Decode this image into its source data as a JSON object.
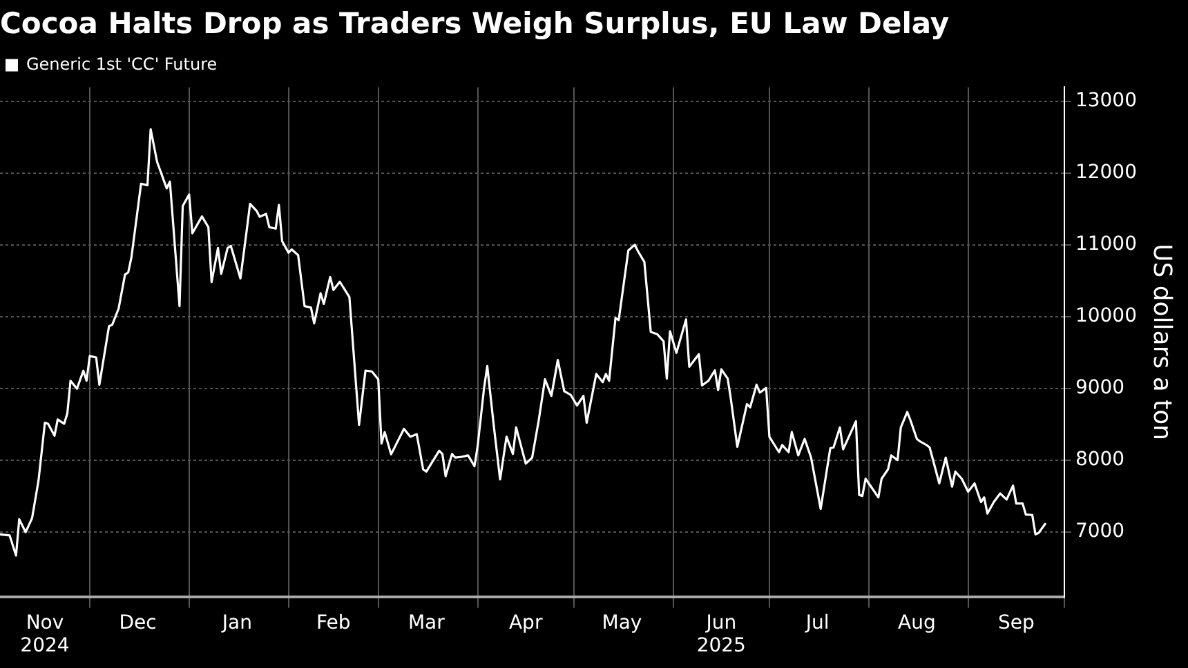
{
  "chart_data": {
    "type": "line",
    "title": "Cocoa Halts Drop as Traders Weigh Surplus, EU Law Delay",
    "ylabel": "US dollars a ton",
    "legend": "top left",
    "grid": true,
    "marker": "none",
    "line_style": "solid",
    "xlim": [
      "2024-11-03",
      "2025-10-01"
    ],
    "ylim": [
      6100,
      13200
    ],
    "yticks": [
      7000,
      8000,
      9000,
      10000,
      11000,
      12000,
      13000
    ],
    "xticks": [
      {
        "value": "2024-11-17",
        "label": "Nov\n2024"
      },
      {
        "value": "2024-12-01",
        "label": null
      },
      {
        "value": "2024-12-16",
        "label": "Dec"
      },
      {
        "value": "2025-01-01",
        "label": null
      },
      {
        "value": "2025-01-16",
        "label": "Jan"
      },
      {
        "value": "2025-02-01",
        "label": null
      },
      {
        "value": "2025-02-15",
        "label": "Feb"
      },
      {
        "value": "2025-03-01",
        "label": null
      },
      {
        "value": "2025-03-16",
        "label": "Mar"
      },
      {
        "value": "2025-04-01",
        "label": null
      },
      {
        "value": "2025-04-16",
        "label": "Apr"
      },
      {
        "value": "2025-05-01",
        "label": null
      },
      {
        "value": "2025-05-16",
        "label": "May"
      },
      {
        "value": "2025-06-01",
        "label": null
      },
      {
        "value": "2025-06-16",
        "label": "Jun\n2025"
      },
      {
        "value": "2025-07-01",
        "label": null
      },
      {
        "value": "2025-07-16",
        "label": "Jul"
      },
      {
        "value": "2025-08-01",
        "label": null
      },
      {
        "value": "2025-08-16",
        "label": "Aug"
      },
      {
        "value": "2025-09-01",
        "label": null
      },
      {
        "value": "2025-09-16",
        "label": "Sep"
      },
      {
        "value": "2025-10-01",
        "label": null
      }
    ],
    "x": [
      "2024-11-03",
      "2024-11-06",
      "2024-11-08",
      "2024-11-09",
      "2024-11-11",
      "2024-11-13",
      "2024-11-15",
      "2024-11-17",
      "2024-11-18",
      "2024-11-20",
      "2024-11-21",
      "2024-11-23",
      "2024-11-24",
      "2024-11-25",
      "2024-11-27",
      "2024-11-29",
      "2024-11-30",
      "2024-12-01",
      "2024-12-03",
      "2024-12-04",
      "2024-12-07",
      "2024-12-08",
      "2024-12-10",
      "2024-12-12",
      "2024-12-13",
      "2024-12-14",
      "2024-12-17",
      "2024-12-19",
      "2024-12-20",
      "2024-12-22",
      "2024-12-25",
      "2024-12-26",
      "2024-12-29",
      "2024-12-30",
      "2025-01-01",
      "2025-01-02",
      "2025-01-05",
      "2025-01-07",
      "2025-01-08",
      "2025-01-10",
      "2025-01-11",
      "2025-01-13",
      "2025-01-14",
      "2025-01-17",
      "2025-01-19",
      "2025-01-20",
      "2025-01-22",
      "2025-01-23",
      "2025-01-25",
      "2025-01-26",
      "2025-01-28",
      "2025-01-29",
      "2025-01-30",
      "2025-02-01",
      "2025-02-02",
      "2025-02-04",
      "2025-02-06",
      "2025-02-08",
      "2025-02-09",
      "2025-02-11",
      "2025-02-12",
      "2025-02-14",
      "2025-02-15",
      "2025-02-17",
      "2025-02-20",
      "2025-02-23",
      "2025-02-25",
      "2025-02-27",
      "2025-03-01",
      "2025-03-02",
      "2025-03-03",
      "2025-03-05",
      "2025-03-09",
      "2025-03-11",
      "2025-03-13",
      "2025-03-15",
      "2025-03-16",
      "2025-03-20",
      "2025-03-21",
      "2025-03-22",
      "2025-03-24",
      "2025-03-25",
      "2025-03-27",
      "2025-03-29",
      "2025-03-31",
      "2025-04-01",
      "2025-04-03",
      "2025-04-04",
      "2025-04-06",
      "2025-04-08",
      "2025-04-10",
      "2025-04-12",
      "2025-04-13",
      "2025-04-16",
      "2025-04-18",
      "2025-04-20",
      "2025-04-22",
      "2025-04-24",
      "2025-04-26",
      "2025-04-28",
      "2025-04-30",
      "2025-05-02",
      "2025-05-04",
      "2025-05-05",
      "2025-05-08",
      "2025-05-10",
      "2025-05-11",
      "2025-05-12",
      "2025-05-14",
      "2025-05-15",
      "2025-05-18",
      "2025-05-20",
      "2025-05-21",
      "2025-05-23",
      "2025-05-25",
      "2025-05-27",
      "2025-05-29",
      "2025-05-30",
      "2025-05-31",
      "2025-06-02",
      "2025-06-05",
      "2025-06-06",
      "2025-06-09",
      "2025-06-10",
      "2025-06-12",
      "2025-06-14",
      "2025-06-15",
      "2025-06-16",
      "2025-06-18",
      "2025-06-19",
      "2025-06-21",
      "2025-06-24",
      "2025-06-25",
      "2025-06-27",
      "2025-06-28",
      "2025-06-30",
      "2025-07-01",
      "2025-07-04",
      "2025-07-05",
      "2025-07-07",
      "2025-07-08",
      "2025-07-10",
      "2025-07-12",
      "2025-07-14",
      "2025-07-17",
      "2025-07-20",
      "2025-07-21",
      "2025-07-23",
      "2025-07-24",
      "2025-07-28",
      "2025-07-29",
      "2025-07-30",
      "2025-07-31",
      "2025-08-04",
      "2025-08-05",
      "2025-08-07",
      "2025-08-08",
      "2025-08-10",
      "2025-08-11",
      "2025-08-13",
      "2025-08-14",
      "2025-08-16",
      "2025-08-17",
      "2025-08-19",
      "2025-08-20",
      "2025-08-23",
      "2025-08-25",
      "2025-08-27",
      "2025-08-28",
      "2025-08-30",
      "2025-09-01",
      "2025-09-03",
      "2025-09-05",
      "2025-09-06",
      "2025-09-07",
      "2025-09-09",
      "2025-09-11",
      "2025-09-13",
      "2025-09-15",
      "2025-09-16",
      "2025-09-18",
      "2025-09-19",
      "2025-09-21",
      "2025-09-22",
      "2025-09-23",
      "2025-09-25"
    ],
    "series": [
      {
        "name": "Generic 1st 'CC' Future",
        "color": "#ffffff",
        "values": [
          6970,
          6955,
          6675,
          7180,
          7000,
          7195,
          7715,
          8525,
          8510,
          8345,
          8570,
          8510,
          8655,
          9110,
          9000,
          9250,
          9110,
          9455,
          9435,
          9055,
          9870,
          9890,
          10115,
          10590,
          10620,
          10830,
          11855,
          11835,
          12615,
          12160,
          11790,
          11885,
          10150,
          11545,
          11705,
          11165,
          11400,
          11250,
          10485,
          10960,
          10600,
          10960,
          10990,
          10535,
          11220,
          11575,
          11480,
          11395,
          11435,
          11250,
          11230,
          11560,
          11055,
          10895,
          10940,
          10860,
          10150,
          10130,
          9910,
          10330,
          10180,
          10555,
          10375,
          10490,
          10275,
          8495,
          9250,
          9240,
          9130,
          8235,
          8395,
          8085,
          8440,
          8330,
          8365,
          7875,
          7845,
          8135,
          8090,
          7780,
          8090,
          8040,
          8050,
          8070,
          7920,
          8200,
          9010,
          9315,
          8495,
          7735,
          8330,
          8090,
          8460,
          7955,
          8040,
          8545,
          9130,
          8900,
          9400,
          8965,
          8915,
          8765,
          8900,
          8525,
          9205,
          9090,
          9205,
          9110,
          9985,
          9955,
          10925,
          11005,
          10915,
          10765,
          9790,
          9760,
          9660,
          9140,
          9800,
          9500,
          9965,
          9305,
          9480,
          9045,
          9110,
          9255,
          8980,
          9270,
          9140,
          8850,
          8190,
          8785,
          8740,
          9055,
          8945,
          9010,
          8330,
          8115,
          8215,
          8115,
          8395,
          8070,
          8300,
          8040,
          7325,
          8170,
          8180,
          8460,
          8155,
          8545,
          7520,
          7505,
          7745,
          7485,
          7745,
          7875,
          8070,
          8005,
          8460,
          8675,
          8560,
          8300,
          8265,
          8215,
          8180,
          7680,
          8040,
          7635,
          7845,
          7745,
          7565,
          7680,
          7420,
          7485,
          7260,
          7420,
          7540,
          7455,
          7650,
          7400,
          7400,
          7245,
          7240,
          6970,
          6990,
          7115
        ]
      }
    ]
  }
}
